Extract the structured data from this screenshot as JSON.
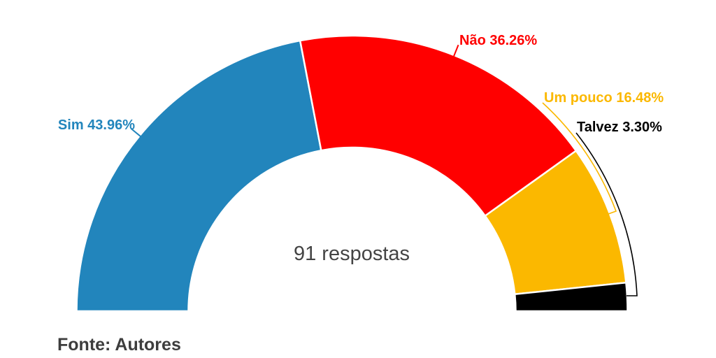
{
  "chart_data": {
    "type": "pie",
    "variant": "half-donut",
    "title": "",
    "center_label": "91 respostas",
    "source": "Fonte: Autores",
    "legend_position": "none",
    "background": "#FFFFFF",
    "center_label_color": "#444444",
    "source_color": "#3D3D3D",
    "slices": [
      {
        "name": "Sim",
        "label": "Sim 43.96%",
        "value": 43.96,
        "color": "#2285BC"
      },
      {
        "name": "Não",
        "label": "Não 36.26%",
        "value": 36.26,
        "color": "#FF0000"
      },
      {
        "name": "Um pouco",
        "label": "Um pouco 16.48%",
        "value": 16.48,
        "color": "#FBB800"
      },
      {
        "name": "Talvez",
        "label": "Talvez 3.30%",
        "value": 3.3,
        "color": "#000000"
      }
    ]
  }
}
